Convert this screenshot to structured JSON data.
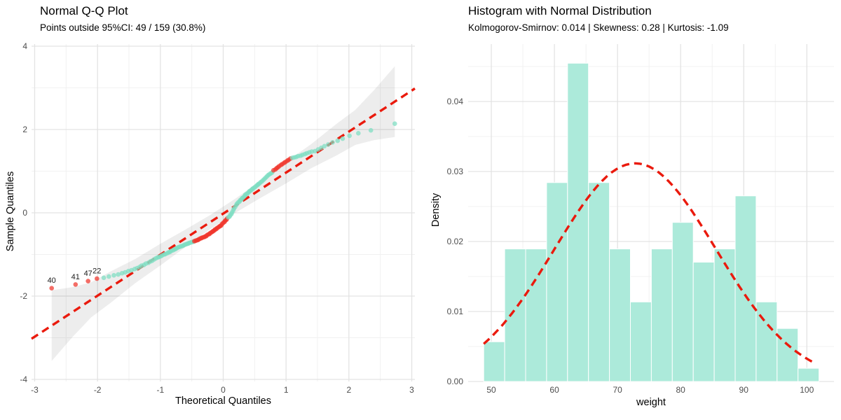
{
  "colors": {
    "background": "#ffffff",
    "grid_major": "#e3e3e3",
    "grid_minor": "#f1f1f1",
    "point_inside": "#7ddec2",
    "point_outside": "#f0352b",
    "ref_line_red": "#ea1a0d",
    "band_fill": "rgba(0,0,0,0.07)",
    "bar_fill": "#aceada",
    "bar_border": "#ffffff",
    "axis_text": "#4d4d4d",
    "title_text": "#000000",
    "outlier_label_text": "#1a1a1a"
  },
  "chart_data": [
    {
      "type": "scatter",
      "title": "Normal Q-Q Plot",
      "subtitle": "Points outside 95%CI: 49 / 159 (30.8%)",
      "xlabel": "Theoretical Quantiles",
      "ylabel": "Sample Quantiles",
      "xlim": [
        -3.05,
        3.05
      ],
      "ylim": [
        -4.05,
        4.05
      ],
      "x_ticks": [
        -3,
        -2,
        -1,
        0,
        1,
        2,
        3
      ],
      "x_minor": [
        -2.5,
        -1.5,
        -0.5,
        0.5,
        1.5,
        2.5
      ],
      "y_ticks": [
        -4,
        -2,
        0,
        2,
        4
      ],
      "y_minor": [
        -3,
        -1,
        1,
        3
      ],
      "grid": true,
      "legend": "none",
      "n_points": 159,
      "n_outside_ci": 49,
      "pct_outside_ci": "30.8%",
      "ref_line": {
        "slope": 0.985,
        "intercept": -0.02,
        "style": "dashed"
      },
      "ci_band": {
        "t": [
          -2.73,
          -2.4,
          -2.1,
          -1.8,
          -1.4,
          -1.0,
          -0.6,
          -0.2,
          0,
          0.2,
          0.6,
          1.0,
          1.4,
          1.8,
          2.1,
          2.4,
          2.73
        ],
        "half_width": [
          0.85,
          0.6,
          0.42,
          0.38,
          0.29,
          0.26,
          0.21,
          0.17,
          0.17,
          0.17,
          0.21,
          0.26,
          0.29,
          0.38,
          0.42,
          0.6,
          0.85
        ]
      },
      "outlier_labels": [
        {
          "text": "40",
          "t": -2.73,
          "s": -1.81
        },
        {
          "text": "41",
          "t": -2.35,
          "s": -1.72
        },
        {
          "text": "47",
          "t": -2.15,
          "s": -1.64
        },
        {
          "text": "22",
          "t": -2.01,
          "s": -1.58
        }
      ],
      "points": [
        [
          -2.73,
          -1.81,
          1
        ],
        [
          -2.35,
          -1.72,
          1
        ],
        [
          -2.15,
          -1.64,
          1
        ],
        [
          -2.01,
          -1.58,
          1
        ],
        [
          -1.9,
          -1.56,
          0
        ],
        [
          -1.82,
          -1.53,
          0
        ],
        [
          -1.74,
          -1.5,
          0
        ],
        [
          -1.67,
          -1.48,
          0
        ],
        [
          -1.61,
          -1.45,
          0
        ],
        [
          -1.56,
          -1.43,
          0
        ],
        [
          -1.51,
          -1.4,
          0
        ],
        [
          -1.46,
          -1.38,
          0
        ],
        [
          -1.41,
          -1.35,
          0
        ],
        [
          -1.37,
          -1.33,
          0
        ],
        [
          -1.33,
          -1.3,
          0
        ],
        [
          -1.3,
          -1.27,
          0
        ],
        [
          -1.26,
          -1.25,
          0
        ],
        [
          -1.23,
          -1.22,
          0
        ],
        [
          -1.19,
          -1.2,
          0
        ],
        [
          -1.16,
          -1.17,
          0
        ],
        [
          -1.13,
          -1.15,
          0
        ],
        [
          -1.1,
          -1.12,
          0
        ],
        [
          -1.07,
          -1.09,
          0
        ],
        [
          -1.04,
          -1.07,
          0
        ],
        [
          -1.02,
          -1.06,
          0
        ],
        [
          -0.99,
          -1.04,
          0
        ],
        [
          -0.97,
          -1.02,
          0
        ],
        [
          -0.94,
          -1.0,
          0
        ],
        [
          -0.92,
          -0.99,
          0
        ],
        [
          -0.89,
          -0.97,
          0
        ],
        [
          -0.87,
          -0.95,
          0
        ],
        [
          -0.85,
          -0.94,
          0
        ],
        [
          -0.83,
          -0.92,
          0
        ],
        [
          -0.8,
          -0.9,
          0
        ],
        [
          -0.78,
          -0.88,
          0
        ],
        [
          -0.76,
          -0.87,
          0
        ],
        [
          -0.74,
          -0.85,
          0
        ],
        [
          -0.72,
          -0.83,
          0
        ],
        [
          -0.7,
          -0.82,
          0
        ],
        [
          -0.68,
          -0.81,
          0
        ],
        [
          -0.66,
          -0.8,
          0
        ],
        [
          -0.64,
          -0.79,
          0
        ],
        [
          -0.62,
          -0.77,
          0
        ],
        [
          -0.6,
          -0.76,
          0
        ],
        [
          -0.58,
          -0.75,
          0
        ],
        [
          -0.56,
          -0.74,
          0
        ],
        [
          -0.55,
          -0.73,
          0
        ],
        [
          -0.53,
          -0.72,
          0
        ],
        [
          -0.51,
          -0.71,
          0
        ],
        [
          -0.49,
          -0.7,
          0
        ],
        [
          -0.47,
          -0.69,
          0
        ],
        [
          -0.46,
          -0.68,
          1
        ],
        [
          -0.44,
          -0.67,
          1
        ],
        [
          -0.42,
          -0.66,
          1
        ],
        [
          -0.4,
          -0.65,
          1
        ],
        [
          -0.39,
          -0.64,
          1
        ],
        [
          -0.37,
          -0.62,
          1
        ],
        [
          -0.35,
          -0.61,
          1
        ],
        [
          -0.34,
          -0.6,
          1
        ],
        [
          -0.32,
          -0.59,
          1
        ],
        [
          -0.3,
          -0.58,
          1
        ],
        [
          -0.29,
          -0.57,
          1
        ],
        [
          -0.27,
          -0.56,
          1
        ],
        [
          -0.26,
          -0.54,
          1
        ],
        [
          -0.24,
          -0.52,
          1
        ],
        [
          -0.22,
          -0.51,
          1
        ],
        [
          -0.21,
          -0.49,
          1
        ],
        [
          -0.19,
          -0.47,
          1
        ],
        [
          -0.17,
          -0.45,
          1
        ],
        [
          -0.16,
          -0.44,
          1
        ],
        [
          -0.14,
          -0.42,
          1
        ],
        [
          -0.13,
          -0.4,
          1
        ],
        [
          -0.11,
          -0.39,
          1
        ],
        [
          -0.1,
          -0.37,
          1
        ],
        [
          -0.08,
          -0.35,
          1
        ],
        [
          -0.06,
          -0.33,
          1
        ],
        [
          -0.05,
          -0.32,
          1
        ],
        [
          -0.03,
          -0.3,
          1
        ],
        [
          -0.02,
          -0.27,
          1
        ],
        [
          0,
          -0.24,
          1
        ],
        [
          0.02,
          -0.22,
          1
        ],
        [
          0.03,
          -0.19,
          1
        ],
        [
          0.05,
          -0.17,
          1
        ],
        [
          0.06,
          -0.14,
          1
        ],
        [
          0.08,
          -0.11,
          0
        ],
        [
          0.1,
          -0.09,
          0
        ],
        [
          0.11,
          -0.06,
          0
        ],
        [
          0.13,
          -0.03,
          0
        ],
        [
          0.14,
          0.01,
          0
        ],
        [
          0.16,
          0.06,
          0
        ],
        [
          0.17,
          0.1,
          0
        ],
        [
          0.19,
          0.14,
          0
        ],
        [
          0.21,
          0.19,
          0
        ],
        [
          0.22,
          0.22,
          0
        ],
        [
          0.24,
          0.25,
          0
        ],
        [
          0.26,
          0.27,
          0
        ],
        [
          0.27,
          0.3,
          0
        ],
        [
          0.29,
          0.32,
          0
        ],
        [
          0.3,
          0.35,
          0
        ],
        [
          0.32,
          0.37,
          0
        ],
        [
          0.34,
          0.4,
          0
        ],
        [
          0.35,
          0.43,
          0
        ],
        [
          0.37,
          0.45,
          0
        ],
        [
          0.39,
          0.47,
          0
        ],
        [
          0.41,
          0.5,
          0
        ],
        [
          0.42,
          0.52,
          0
        ],
        [
          0.44,
          0.54,
          0
        ],
        [
          0.46,
          0.56,
          0
        ],
        [
          0.47,
          0.58,
          0
        ],
        [
          0.49,
          0.6,
          0
        ],
        [
          0.51,
          0.62,
          0
        ],
        [
          0.53,
          0.65,
          0
        ],
        [
          0.55,
          0.67,
          0
        ],
        [
          0.56,
          0.69,
          0
        ],
        [
          0.58,
          0.71,
          0
        ],
        [
          0.6,
          0.74,
          0
        ],
        [
          0.62,
          0.76,
          0
        ],
        [
          0.64,
          0.79,
          0
        ],
        [
          0.66,
          0.82,
          0
        ],
        [
          0.68,
          0.85,
          0
        ],
        [
          0.7,
          0.88,
          0
        ],
        [
          0.72,
          0.91,
          0
        ],
        [
          0.74,
          0.93,
          0
        ],
        [
          0.76,
          0.95,
          0
        ],
        [
          0.78,
          0.97,
          0
        ],
        [
          0.8,
          1.02,
          1
        ],
        [
          0.83,
          1.04,
          1
        ],
        [
          0.85,
          1.07,
          1
        ],
        [
          0.87,
          1.09,
          1
        ],
        [
          0.89,
          1.12,
          1
        ],
        [
          0.92,
          1.15,
          1
        ],
        [
          0.94,
          1.17,
          1
        ],
        [
          0.97,
          1.2,
          1
        ],
        [
          0.99,
          1.22,
          1
        ],
        [
          1.02,
          1.25,
          1
        ],
        [
          1.04,
          1.27,
          1
        ],
        [
          1.07,
          1.3,
          1
        ],
        [
          1.1,
          1.32,
          0
        ],
        [
          1.13,
          1.33,
          0
        ],
        [
          1.16,
          1.34,
          0
        ],
        [
          1.19,
          1.36,
          0
        ],
        [
          1.23,
          1.37,
          0
        ],
        [
          1.26,
          1.39,
          0
        ],
        [
          1.3,
          1.41,
          0
        ],
        [
          1.33,
          1.43,
          0
        ],
        [
          1.37,
          1.45,
          0
        ],
        [
          1.41,
          1.47,
          0
        ],
        [
          1.46,
          1.48,
          0
        ],
        [
          1.51,
          1.52,
          0
        ],
        [
          1.56,
          1.56,
          0
        ],
        [
          1.61,
          1.6,
          0
        ],
        [
          1.67,
          1.64,
          0
        ],
        [
          1.74,
          1.69,
          0
        ],
        [
          1.82,
          1.73,
          0
        ],
        [
          1.9,
          1.78,
          0
        ],
        [
          2.01,
          1.85,
          0
        ],
        [
          2.15,
          1.91,
          0
        ],
        [
          2.35,
          1.98,
          0
        ],
        [
          2.73,
          2.14,
          0
        ]
      ]
    },
    {
      "type": "bar",
      "title": "Histogram with Normal Distribution",
      "subtitle": "Kolmogorov-Smirnov: 0.014 | Skewness: 0.28 | Kurtosis: -1.09",
      "stats": {
        "kolmogorov_smirnov": 0.014,
        "skewness": 0.28,
        "kurtosis": -1.09
      },
      "xlabel": "weight",
      "ylabel": "Density",
      "xlim": [
        46.33,
        104.3
      ],
      "ylim": [
        0,
        0.0482
      ],
      "x_ticks": [
        50,
        60,
        70,
        80,
        90,
        100
      ],
      "x_minor": [
        55,
        65,
        75,
        85,
        95
      ],
      "y_ticks": [
        0,
        0.01,
        0.02,
        0.03,
        0.04
      ],
      "y_tick_labels": [
        "0.00",
        "0.01",
        "0.02",
        "0.03",
        "0.04"
      ],
      "y_minor": [
        0.005,
        0.015,
        0.025,
        0.035,
        0.045
      ],
      "grid": true,
      "legend": "none",
      "bins": {
        "start": 48.8,
        "width": 3.32,
        "counts": [
          3,
          10,
          10,
          15,
          24,
          15,
          10,
          6,
          10,
          12,
          9,
          10,
          14,
          6,
          4,
          1
        ],
        "densities": [
          0.00568,
          0.01894,
          0.01894,
          0.02842,
          0.04547,
          0.02842,
          0.01894,
          0.01137,
          0.01894,
          0.02273,
          0.01705,
          0.01894,
          0.02652,
          0.01137,
          0.00758,
          0.00189
        ],
        "n": 159
      },
      "normal_curve": {
        "mean": 72.8,
        "sd": 12.8,
        "from": 48.8,
        "to": 101.9,
        "style": "dashed"
      }
    }
  ]
}
